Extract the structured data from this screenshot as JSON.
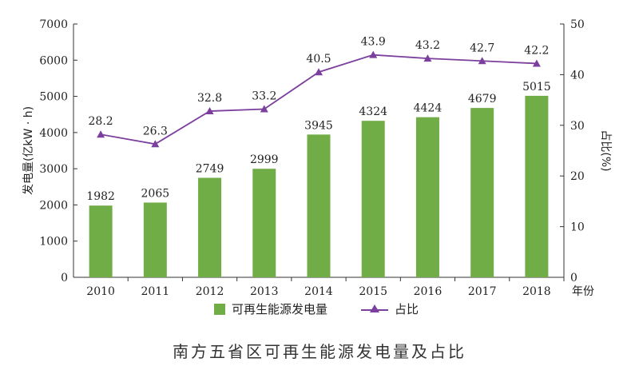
{
  "figure": {
    "caption": "南方五省区可再生能源发电量及占比"
  },
  "chart_data": {
    "type": "bar",
    "categories": [
      "2010",
      "2011",
      "2012",
      "2013",
      "2014",
      "2015",
      "2016",
      "2017",
      "2018"
    ],
    "xlabel": "年份",
    "series": [
      {
        "name": "可再生能源发电量",
        "type": "bar",
        "axis": "left",
        "color": "#70ad47",
        "values": [
          1982,
          2065,
          2749,
          2999,
          3945,
          4324,
          4424,
          4679,
          5015
        ]
      },
      {
        "name": "占比",
        "type": "line",
        "axis": "right",
        "color": "#7b3f9e",
        "marker": "triangle",
        "values": [
          28.2,
          26.3,
          32.8,
          33.2,
          40.5,
          43.9,
          43.2,
          42.7,
          42.2
        ]
      }
    ],
    "y_left": {
      "label": "发电量(亿kW · h)",
      "ylim": [
        0,
        7000
      ],
      "ticks": [
        "0",
        "1000",
        "2000",
        "3000",
        "4000",
        "5000",
        "6000",
        "7000"
      ]
    },
    "y_right": {
      "label": "占比(%)",
      "ylim": [
        0,
        50
      ],
      "ticks": [
        "0",
        "10",
        "20",
        "30",
        "40",
        "50"
      ]
    },
    "grid": false,
    "legend_position": "bottom"
  }
}
